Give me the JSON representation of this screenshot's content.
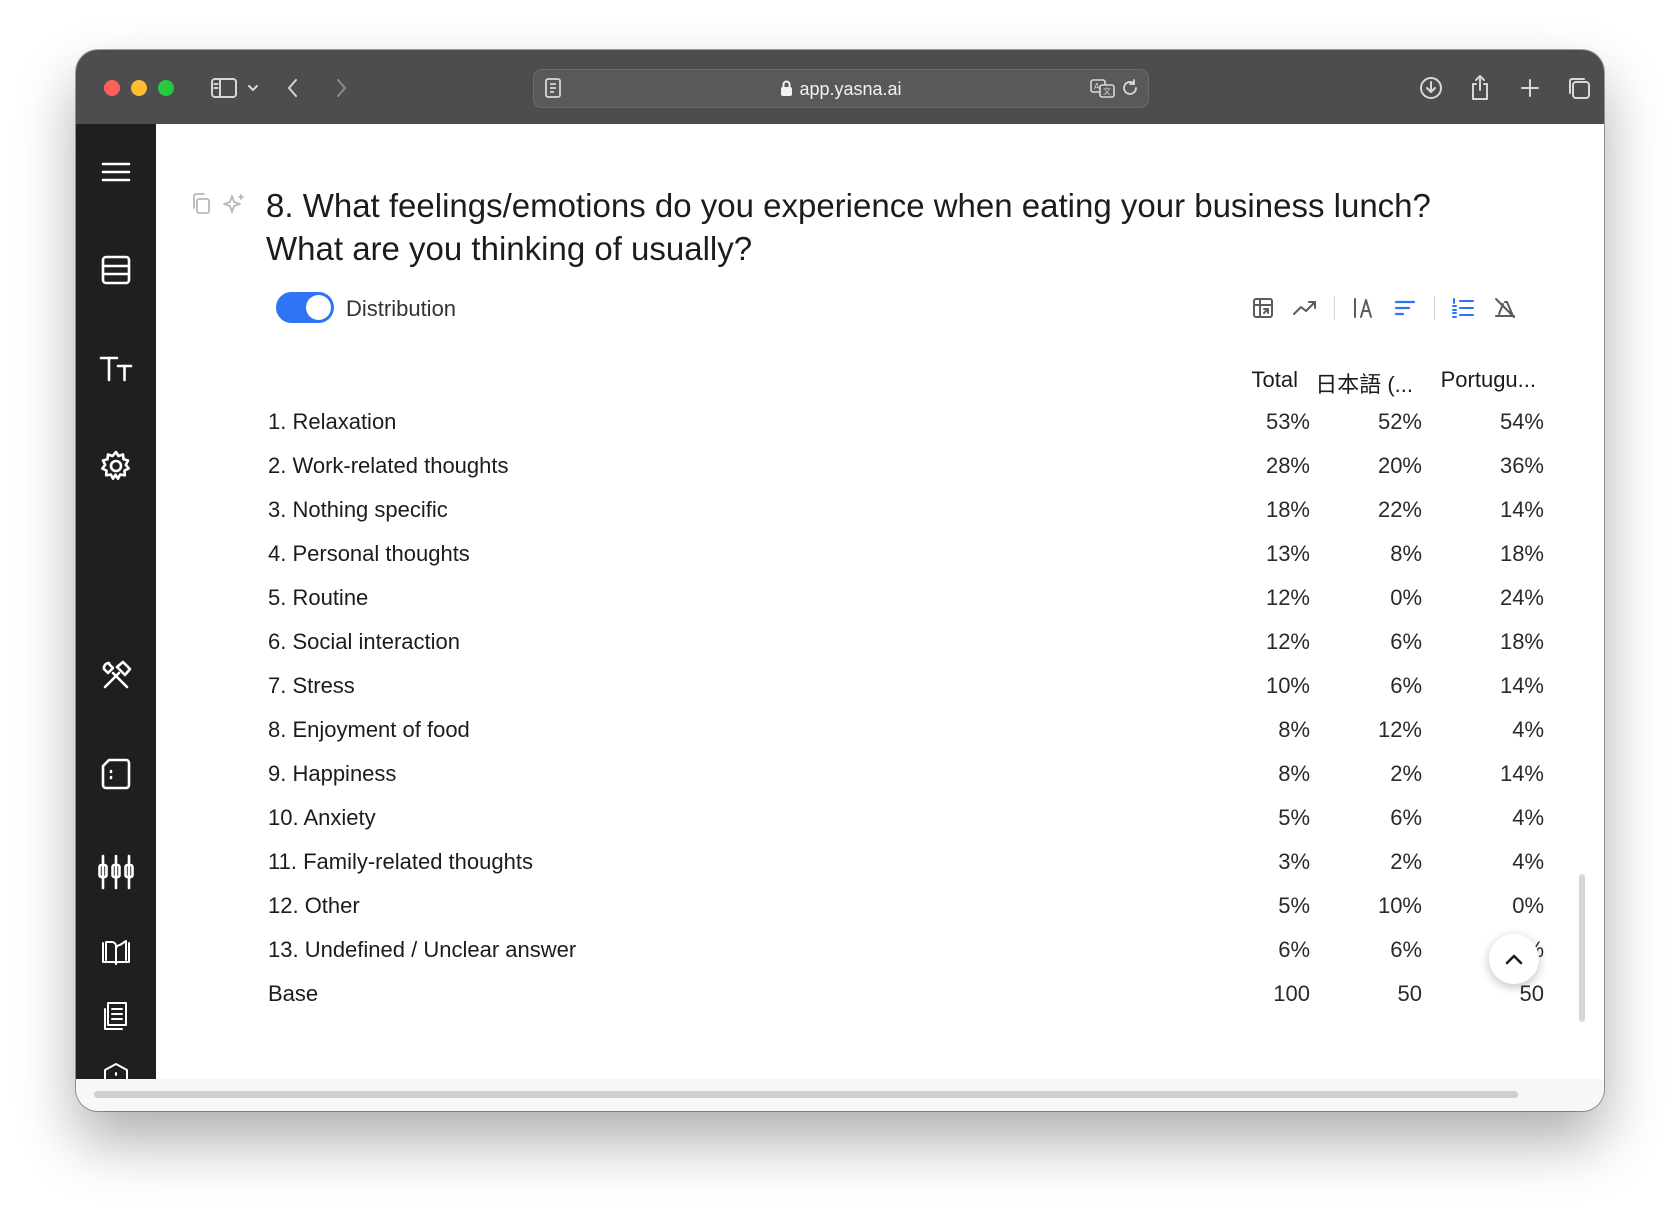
{
  "browser": {
    "url": "app.yasna.ai"
  },
  "question": {
    "title": "8. What feelings/emotions do you experience when eating your business lunch? What are you thinking of usually?",
    "distribution_label": "Distribution",
    "distribution_enabled": true
  },
  "table": {
    "columns": [
      "Total",
      "日本語 (...",
      "Portugu..."
    ],
    "rows": [
      {
        "label": "1. Relaxation",
        "values": [
          "53%",
          "52%",
          "54%"
        ]
      },
      {
        "label": "2. Work-related thoughts",
        "values": [
          "28%",
          "20%",
          "36%"
        ]
      },
      {
        "label": "3. Nothing specific",
        "values": [
          "18%",
          "22%",
          "14%"
        ]
      },
      {
        "label": "4. Personal thoughts",
        "values": [
          "13%",
          "8%",
          "18%"
        ]
      },
      {
        "label": "5. Routine",
        "values": [
          "12%",
          "0%",
          "24%"
        ]
      },
      {
        "label": "6. Social interaction",
        "values": [
          "12%",
          "6%",
          "18%"
        ]
      },
      {
        "label": "7. Stress",
        "values": [
          "10%",
          "6%",
          "14%"
        ]
      },
      {
        "label": "8. Enjoyment of food",
        "values": [
          "8%",
          "12%",
          "4%"
        ]
      },
      {
        "label": "9. Happiness",
        "values": [
          "8%",
          "2%",
          "14%"
        ]
      },
      {
        "label": "10. Anxiety",
        "values": [
          "5%",
          "6%",
          "4%"
        ]
      },
      {
        "label": "11. Family-related thoughts",
        "values": [
          "3%",
          "2%",
          "4%"
        ]
      },
      {
        "label": "12. Other",
        "values": [
          "5%",
          "10%",
          "0%"
        ]
      },
      {
        "label": "13. Undefined / Unclear answer",
        "values": [
          "6%",
          "6%",
          "6%"
        ]
      }
    ],
    "base": {
      "label": "Base",
      "values": [
        "100",
        "50",
        "50"
      ]
    }
  },
  "colors": {
    "accent": "#2f74f5",
    "sidebar": "#1f1f22",
    "titlebar": "#4d4d4f"
  }
}
